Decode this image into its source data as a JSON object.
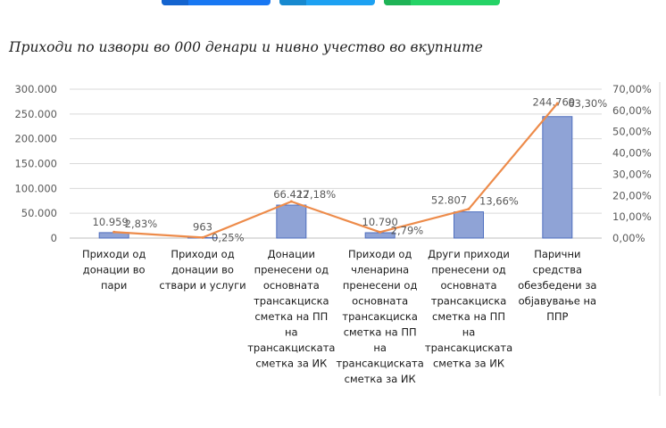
{
  "share": {
    "colors": [
      "#1877f2",
      "#1da1f2",
      "#25d366"
    ],
    "edge_colors": [
      "#1464cf",
      "#1789cf",
      "#1fb356"
    ]
  },
  "chart_data": {
    "type": "bar",
    "title": "Приходи по извори во 000 денари и нивно учество во вкупните",
    "categories": [
      [
        "Приходи од",
        "донации во",
        "пари"
      ],
      [
        "Приходи од",
        "донации во",
        "ствари и услуги"
      ],
      [
        "Донации",
        "пренесени од",
        "основната",
        "трансакциска",
        "сметка на ПП",
        "на",
        "трансакциската",
        "сметка за ИК"
      ],
      [
        "Приходи од",
        "членарина",
        "пренесени од",
        "основната",
        "трансакциска",
        "сметка на ПП",
        "на",
        "трансакциската",
        "сметка за ИК"
      ],
      [
        "Други приходи",
        "пренесени од",
        "основната",
        "трансакциска",
        "сметка на ПП",
        "на",
        "трансакциската",
        "сметка за ИК"
      ],
      [
        "Парични",
        "средства",
        "обезбедени за",
        "објавување на",
        "ППР"
      ]
    ],
    "series": [
      {
        "name": "Приходи (000 денари)",
        "type": "bar",
        "axis": "left",
        "values": [
          10959,
          963,
          66422,
          10790,
          52807,
          244769
        ],
        "labels": [
          "10.959",
          "963",
          "66.422",
          "10.790",
          "52.807",
          "244.769"
        ],
        "color": "#8fa3d6"
      },
      {
        "name": "Учество во вкупните",
        "type": "line",
        "axis": "right",
        "values": [
          2.83,
          0.25,
          17.18,
          2.79,
          13.66,
          63.3
        ],
        "labels": [
          "2,83%",
          "0,25%",
          "17,18%",
          "2,79%",
          "13,66%",
          "63,30%"
        ],
        "color": "#ed8b4a"
      }
    ],
    "ylim": [
      0,
      300000
    ],
    "yticks": [
      0,
      50000,
      100000,
      150000,
      200000,
      250000,
      300000
    ],
    "ytick_labels": [
      "0",
      "50.000",
      "100.000",
      "150.000",
      "200.000",
      "250.000",
      "300.000"
    ],
    "y2lim": [
      0,
      70
    ],
    "y2ticks": [
      0,
      10,
      20,
      30,
      40,
      50,
      60,
      70
    ],
    "y2tick_labels": [
      "0,00%",
      "10,00%",
      "20,00%",
      "30,00%",
      "40,00%",
      "50,00%",
      "60,00%",
      "70,00%"
    ],
    "grid": true,
    "legend": "none"
  }
}
